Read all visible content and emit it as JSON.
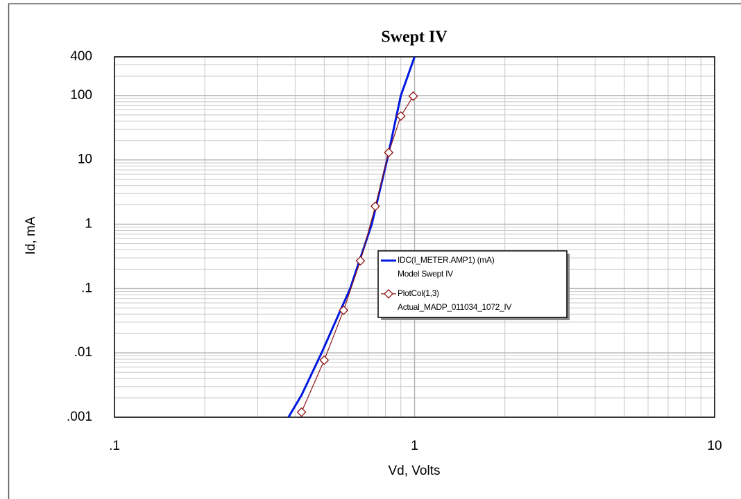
{
  "chart_data": {
    "type": "line",
    "title": "Swept IV",
    "x_label": "Vd, Volts",
    "y_label": "Id, mA",
    "x_scale": "log",
    "y_scale": "log",
    "xlim": [
      0.1,
      10
    ],
    "ylim": [
      0.001,
      400
    ],
    "xticks": [
      {
        "value": 0.1,
        "label": ".1"
      },
      1,
      10
    ],
    "yticks": [
      {
        "value": 0.001,
        "label": ".001"
      },
      {
        "value": 0.01,
        "label": ".01"
      },
      {
        "value": 0.1,
        "label": ".1"
      },
      1,
      10,
      100,
      400
    ],
    "grid": true,
    "series": [
      {
        "name": "IDC(I_METER.AMP1) (mA)",
        "description": "Model Swept IV",
        "color": "#0018e0",
        "marker": "none",
        "x": [
          0.38,
          0.42,
          0.49,
          0.61,
          0.72,
          0.81,
          0.9,
          1.0
        ],
        "values": [
          0.001,
          0.0022,
          0.01,
          0.1,
          1,
          10,
          100,
          400
        ]
      },
      {
        "name": "PlotCol(1,3)",
        "description": "Actual_MADP_011034_1072_IV",
        "color": "#8b1414",
        "marker": "diamond",
        "x": [
          0.42,
          0.5,
          0.58,
          0.66,
          0.74,
          0.82,
          0.9,
          0.99
        ],
        "values": [
          0.0012,
          0.0077,
          0.046,
          0.27,
          1.9,
          13,
          48,
          98
        ]
      }
    ]
  }
}
